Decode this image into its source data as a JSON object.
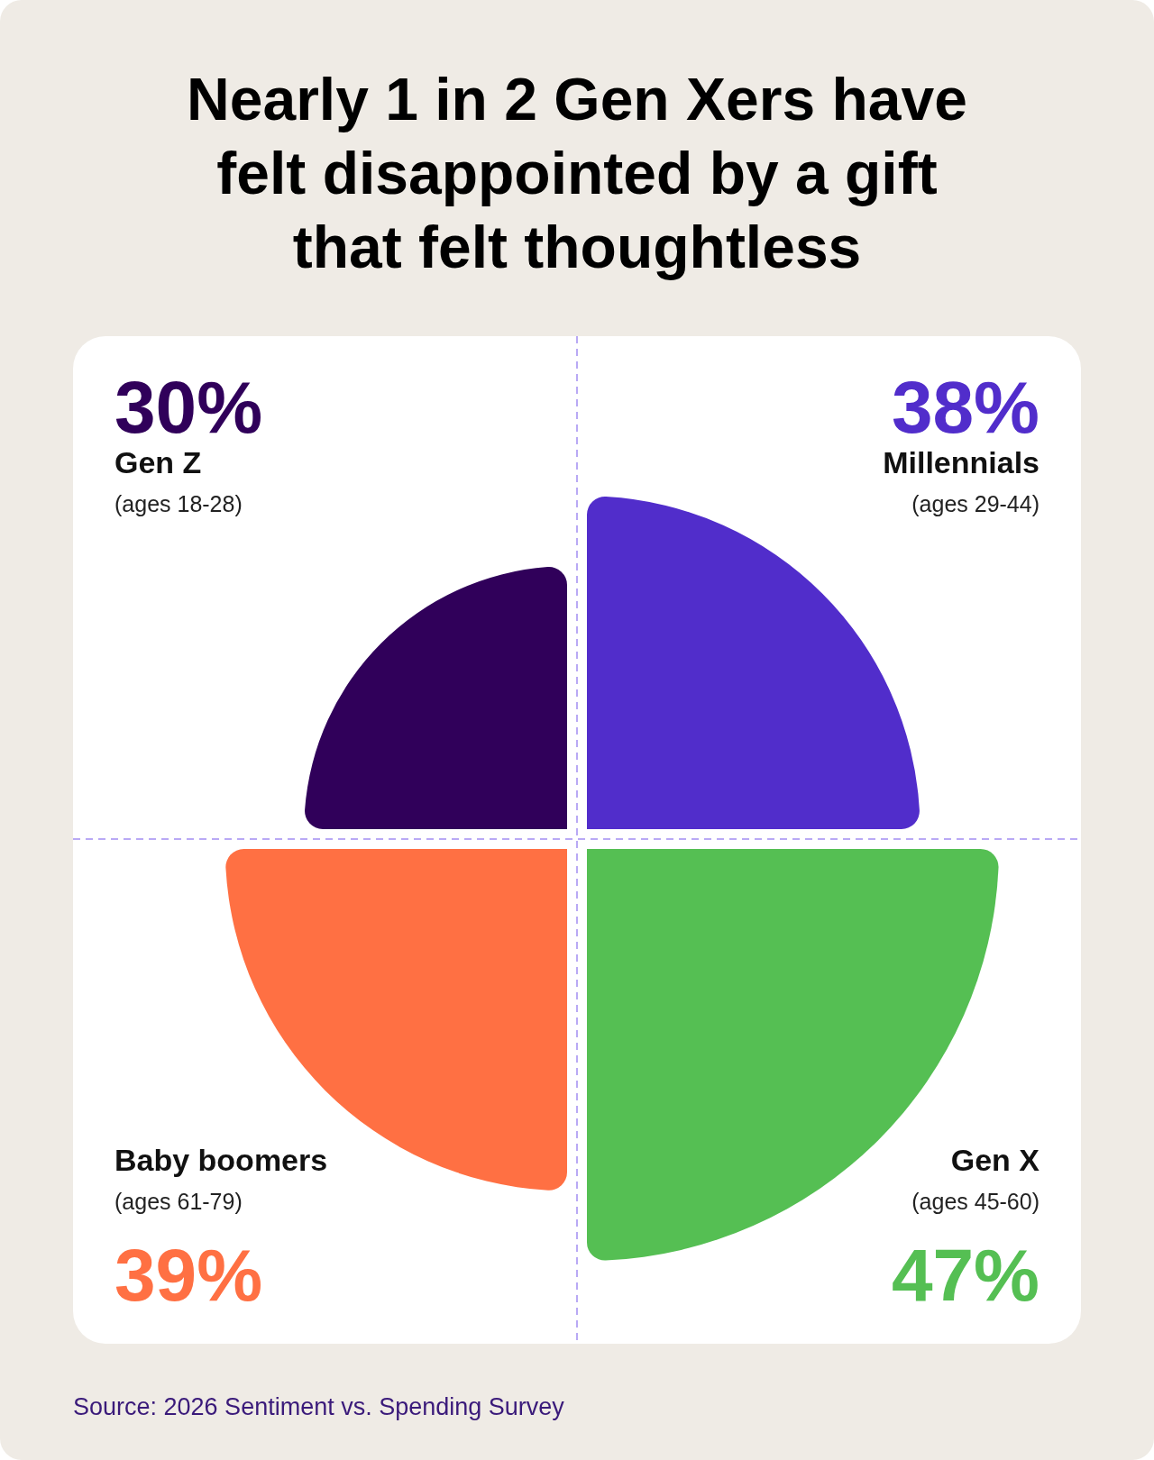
{
  "chart_data": {
    "type": "other",
    "title": "Nearly 1 in 2 Gen Xers have\nfelt disappointed by a gift\nthat felt thoughtless",
    "categories": [
      "Gen Z\n(ages 18-28)",
      "Millennials\n(ages 29-44)",
      "Gen X\n(ages 45-60)",
      "Baby boomers\n(ages 61-79)"
    ],
    "values": [
      30,
      38,
      47,
      39
    ],
    "colors": [
      "#30005a",
      "#512dcb",
      "#55bf53",
      "#ff7043"
    ],
    "value_labels": [
      "30%",
      "38%",
      "47%",
      "39%"
    ],
    "annotations": [
      "Source: 2026 Sentiment vs. Spending Survey"
    ]
  }
}
